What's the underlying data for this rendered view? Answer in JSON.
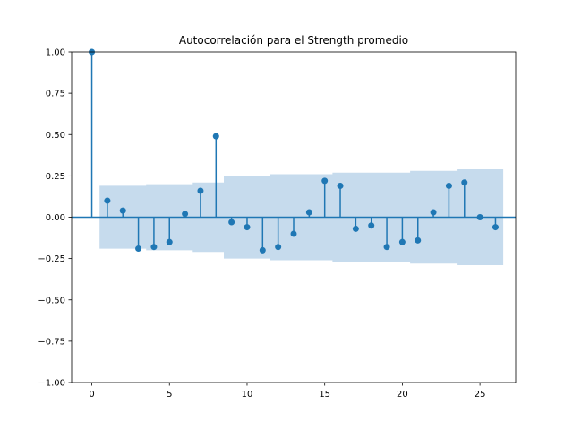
{
  "chart_data": {
    "type": "stem",
    "title": "Autocorrelación para el Strength promedio",
    "xlabel": "",
    "ylabel": "",
    "xlim": [
      -1.3,
      27.3
    ],
    "ylim": [
      -1.0,
      1.0
    ],
    "x_ticks": [
      0,
      5,
      10,
      15,
      20,
      25
    ],
    "y_ticks": [
      1.0,
      0.75,
      0.5,
      0.25,
      0.0,
      -0.25,
      -0.5,
      -0.75,
      -1.0
    ],
    "y_tick_labels": [
      "1.00",
      "0.75",
      "0.50",
      "0.25",
      "0.00",
      "−0.25",
      "−0.50",
      "−0.75",
      "−1.00"
    ],
    "grid": false,
    "series": [
      {
        "lags": [
          0,
          1,
          2,
          3,
          4,
          5,
          6,
          7,
          8,
          9,
          10,
          11,
          12,
          13,
          14,
          15,
          16,
          17,
          18,
          19,
          20,
          21,
          22,
          23,
          24,
          25,
          26
        ],
        "values": [
          1.0,
          0.1,
          0.04,
          -0.19,
          -0.18,
          -0.15,
          0.02,
          0.16,
          0.49,
          -0.03,
          -0.06,
          -0.2,
          -0.18,
          -0.1,
          0.03,
          0.22,
          0.19,
          -0.07,
          -0.05,
          -0.18,
          -0.15,
          -0.14,
          0.03,
          0.19,
          0.21,
          0.0,
          -0.06
        ]
      }
    ],
    "confidence_band": {
      "lags": [
        1,
        2,
        3,
        4,
        5,
        6,
        7,
        8,
        9,
        10,
        11,
        12,
        13,
        14,
        15,
        16,
        17,
        18,
        19,
        20,
        21,
        22,
        23,
        24,
        25,
        26
      ],
      "upper": [
        0.19,
        0.19,
        0.19,
        0.2,
        0.2,
        0.2,
        0.21,
        0.21,
        0.25,
        0.25,
        0.25,
        0.26,
        0.26,
        0.26,
        0.26,
        0.27,
        0.27,
        0.27,
        0.27,
        0.27,
        0.28,
        0.28,
        0.28,
        0.29,
        0.29,
        0.29
      ]
    },
    "colors": {
      "stem": "#1f77b4",
      "marker": "#1f77b4",
      "band": "#c3d9ec",
      "zero_line": "#1f77b4"
    }
  }
}
